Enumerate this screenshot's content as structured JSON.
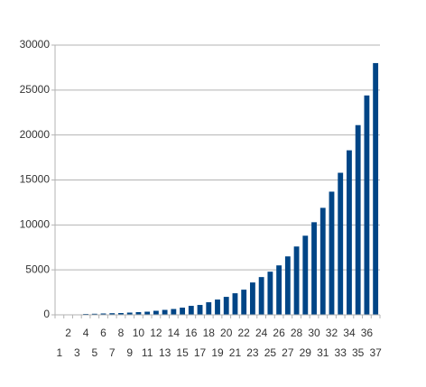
{
  "chart_data": {
    "type": "bar",
    "categories": [
      "1",
      "2",
      "3",
      "4",
      "5",
      "6",
      "7",
      "8",
      "9",
      "10",
      "11",
      "12",
      "13",
      "14",
      "15",
      "16",
      "17",
      "18",
      "19",
      "20",
      "21",
      "22",
      "23",
      "24",
      "25",
      "26",
      "27",
      "28",
      "29",
      "30",
      "31",
      "32",
      "33",
      "34",
      "35",
      "36",
      "37"
    ],
    "values": [
      20,
      30,
      50,
      100,
      120,
      150,
      180,
      200,
      250,
      300,
      350,
      450,
      550,
      650,
      800,
      1000,
      1100,
      1400,
      1700,
      2000,
      2400,
      2800,
      3600,
      4200,
      4800,
      5500,
      6500,
      7600,
      8800,
      10300,
      11900,
      13700,
      15800,
      18300,
      21100,
      24400,
      28000
    ],
    "color": "#004586",
    "ylim": [
      0,
      30000
    ],
    "yticks": [
      0,
      5000,
      10000,
      15000,
      20000,
      25000,
      30000
    ],
    "grid": true
  }
}
